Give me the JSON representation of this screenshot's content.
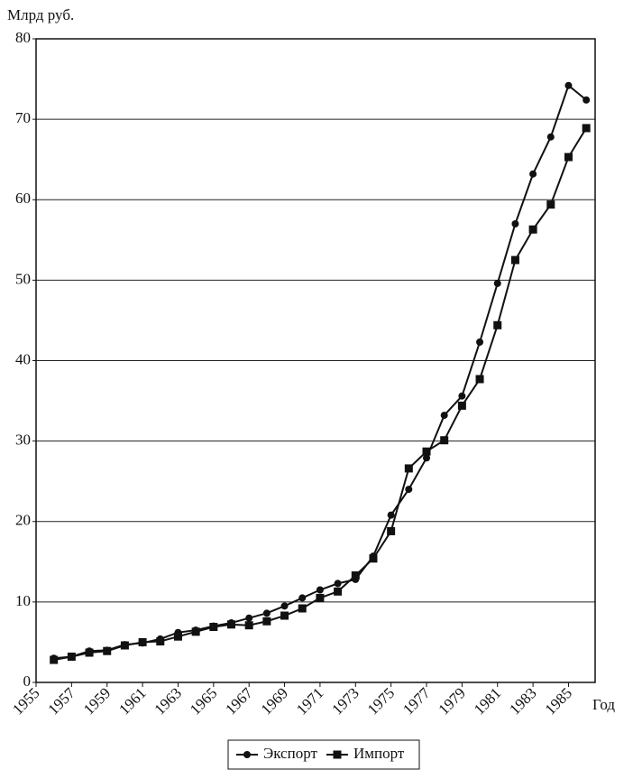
{
  "chart_data": {
    "type": "line",
    "y_label": "Млрд руб.",
    "x_label": "Год",
    "x": [
      1956,
      1957,
      1958,
      1959,
      1960,
      1961,
      1962,
      1963,
      1964,
      1965,
      1966,
      1967,
      1968,
      1969,
      1970,
      1971,
      1972,
      1973,
      1974,
      1975,
      1976,
      1977,
      1978,
      1979,
      1980,
      1981,
      1982,
      1983,
      1984,
      1985,
      1986
    ],
    "series": [
      {
        "name": "Экспорт",
        "color": "#111111",
        "marker": "circle",
        "values": [
          3.0,
          3.2,
          3.9,
          4.0,
          4.7,
          4.9,
          5.4,
          6.2,
          6.5,
          7.0,
          7.4,
          8.0,
          8.6,
          9.5,
          10.5,
          11.5,
          12.3,
          12.8,
          15.7,
          20.8,
          24.0,
          27.9,
          33.2,
          35.6,
          42.3,
          49.6,
          57.0,
          63.2,
          67.8,
          74.2,
          72.4
        ]
      },
      {
        "name": "Импорт",
        "color": "#111111",
        "marker": "square",
        "values": [
          2.8,
          3.2,
          3.7,
          3.9,
          4.6,
          5.0,
          5.1,
          5.7,
          6.3,
          6.9,
          7.2,
          7.1,
          7.6,
          8.3,
          9.2,
          10.5,
          11.3,
          13.3,
          15.4,
          18.8,
          26.6,
          28.7,
          30.1,
          34.4,
          37.7,
          44.4,
          52.5,
          56.3,
          59.4,
          65.3,
          68.9
        ]
      }
    ],
    "xlim": [
      1955,
      1986.5
    ],
    "xticks": [
      1955,
      1957,
      1959,
      1961,
      1963,
      1965,
      1967,
      1969,
      1971,
      1973,
      1975,
      1977,
      1979,
      1981,
      1983,
      1985
    ],
    "ylim": [
      0,
      80
    ],
    "yticks": [
      0,
      10,
      20,
      30,
      40,
      50,
      60,
      70,
      80
    ],
    "grid": true
  }
}
